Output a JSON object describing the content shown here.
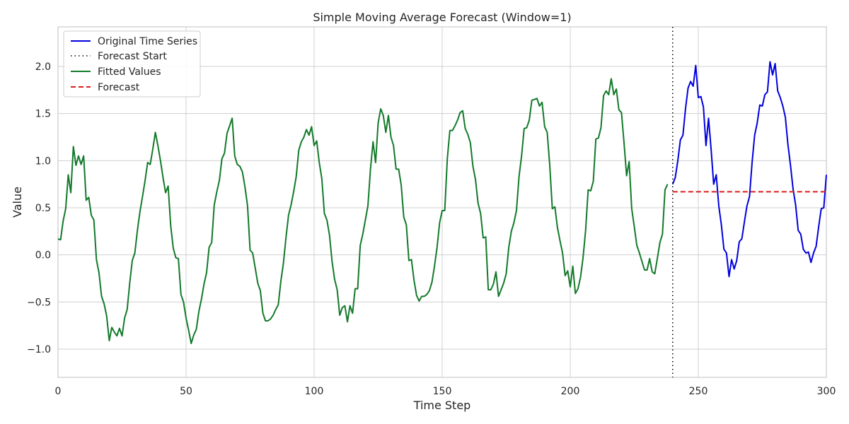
{
  "chart_data": {
    "type": "line",
    "title": "Simple Moving Average Forecast (Window=1)",
    "xlabel": "Time Step",
    "ylabel": "Value",
    "xlim": [
      0,
      300
    ],
    "ylim": [
      -1.3,
      2.42
    ],
    "xticks": [
      0,
      50,
      100,
      150,
      200,
      250,
      300
    ],
    "yticks": [
      -1.0,
      -0.5,
      0.0,
      0.5,
      1.0,
      1.5,
      2.0
    ],
    "ytick_labels": [
      "−1.0",
      "−0.5",
      "0.0",
      "0.5",
      "1.0",
      "1.5",
      "2.0"
    ],
    "grid": true,
    "legend_position": "top-left",
    "legend": [
      "Original Time Series",
      "Forecast Start",
      "Fitted Values",
      "Forecast"
    ],
    "series": [
      {
        "name": "Original Time Series",
        "color": "#0000dd",
        "style": "solid",
        "x_start": 240,
        "values": [
          0.75,
          0.82,
          1.0,
          1.22,
          1.27,
          1.55,
          1.77,
          1.84,
          1.79,
          2.01,
          1.67,
          1.68,
          1.57,
          1.16,
          1.45,
          1.12,
          0.75,
          0.85,
          0.52,
          0.32,
          0.06,
          0.02,
          -0.23,
          -0.05,
          -0.15,
          -0.06,
          0.14,
          0.17,
          0.35,
          0.52,
          0.62,
          0.98,
          1.27,
          1.4,
          1.59,
          1.58,
          1.7,
          1.73,
          2.05,
          1.91,
          2.03,
          1.74,
          1.67,
          1.58,
          1.46,
          1.17,
          0.95,
          0.7,
          0.53,
          0.26,
          0.22,
          0.06,
          0.02,
          0.03,
          -0.08,
          0.02,
          0.09,
          0.3,
          0.49,
          0.5,
          0.85
        ]
      },
      {
        "name": "Fitted Values",
        "color": "#137a2a",
        "style": "solid",
        "x_start": 0,
        "values": [
          0.17,
          0.16,
          0.36,
          0.49,
          0.85,
          0.66,
          1.15,
          0.95,
          1.05,
          0.96,
          1.05,
          0.58,
          0.61,
          0.42,
          0.37,
          -0.05,
          -0.19,
          -0.44,
          -0.52,
          -0.65,
          -0.91,
          -0.77,
          -0.82,
          -0.86,
          -0.78,
          -0.86,
          -0.67,
          -0.58,
          -0.3,
          -0.06,
          0.02,
          0.26,
          0.46,
          0.62,
          0.79,
          0.98,
          0.96,
          1.12,
          1.3,
          1.16,
          1.0,
          0.82,
          0.66,
          0.73,
          0.31,
          0.07,
          -0.03,
          -0.04,
          -0.42,
          -0.5,
          -0.67,
          -0.8,
          -0.94,
          -0.85,
          -0.79,
          -0.6,
          -0.47,
          -0.31,
          -0.19,
          0.08,
          0.13,
          0.53,
          0.67,
          0.79,
          1.02,
          1.08,
          1.29,
          1.37,
          1.45,
          1.05,
          0.96,
          0.94,
          0.88,
          0.72,
          0.52,
          0.05,
          0.02,
          -0.14,
          -0.3,
          -0.38,
          -0.62,
          -0.7,
          -0.7,
          -0.68,
          -0.64,
          -0.58,
          -0.53,
          -0.28,
          -0.09,
          0.18,
          0.42,
          0.53,
          0.67,
          0.83,
          1.11,
          1.2,
          1.25,
          1.33,
          1.27,
          1.36,
          1.16,
          1.21,
          0.98,
          0.81,
          0.44,
          0.37,
          0.21,
          -0.07,
          -0.26,
          -0.37,
          -0.64,
          -0.56,
          -0.54,
          -0.71,
          -0.54,
          -0.62,
          -0.36,
          -0.36,
          0.1,
          0.22,
          0.37,
          0.52,
          0.91,
          1.2,
          0.98,
          1.4,
          1.55,
          1.48,
          1.3,
          1.48,
          1.25,
          1.16,
          0.91,
          0.91,
          0.74,
          0.4,
          0.32,
          -0.06,
          -0.05,
          -0.27,
          -0.43,
          -0.49,
          -0.44,
          -0.44,
          -0.42,
          -0.38,
          -0.29,
          -0.12,
          0.08,
          0.34,
          0.47,
          0.47,
          1.02,
          1.32,
          1.32,
          1.37,
          1.43,
          1.51,
          1.53,
          1.34,
          1.28,
          1.19,
          0.94,
          0.8,
          0.55,
          0.44,
          0.18,
          0.19,
          -0.37,
          -0.37,
          -0.31,
          -0.18,
          -0.44,
          -0.37,
          -0.3,
          -0.2,
          0.08,
          0.25,
          0.34,
          0.47,
          0.83,
          1.05,
          1.34,
          1.35,
          1.43,
          1.64,
          1.65,
          1.66,
          1.58,
          1.62,
          1.36,
          1.3,
          0.95,
          0.49,
          0.51,
          0.29,
          0.15,
          0.02,
          -0.22,
          -0.17,
          -0.34,
          -0.12,
          -0.41,
          -0.36,
          -0.24,
          -0.03,
          0.26,
          0.69,
          0.68,
          0.78,
          1.23,
          1.24,
          1.35,
          1.69,
          1.74,
          1.7,
          1.87,
          1.7,
          1.76,
          1.54,
          1.51,
          1.19,
          0.84,
          0.99,
          0.49,
          0.3,
          0.1,
          0.02,
          -0.07,
          -0.16,
          -0.16,
          -0.04,
          -0.18,
          -0.2,
          -0.04,
          0.13,
          0.22,
          0.69,
          0.75
        ]
      },
      {
        "name": "Forecast",
        "color": "#dd1c1c",
        "style": "dashed",
        "x": [
          240,
          300
        ],
        "values": [
          0.67,
          0.67
        ]
      }
    ],
    "vlines": [
      {
        "name": "Forecast Start",
        "x": 240,
        "color": "#000000",
        "style": "dotted"
      }
    ]
  }
}
